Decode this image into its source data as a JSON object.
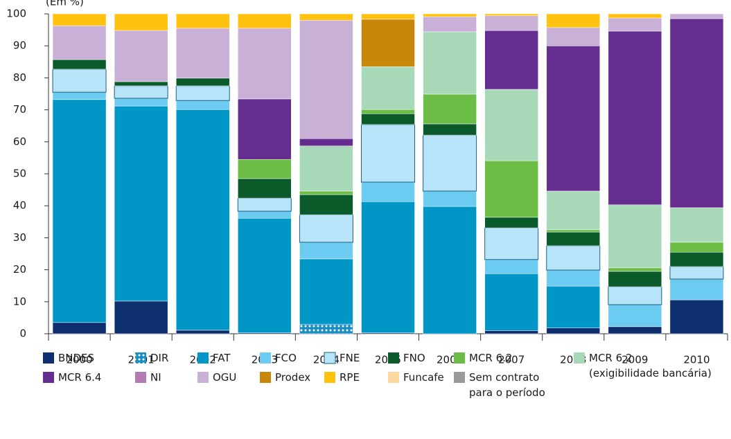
{
  "chart_data": {
    "type": "stacked_bar",
    "title": "(Em %)",
    "categories": [
      "2000",
      "2001",
      "2002",
      "2003",
      "2004",
      "2005",
      "2006",
      "2007",
      "2008",
      "2009",
      "2010"
    ],
    "ylim": [
      0,
      100
    ],
    "yticks": [
      0,
      10,
      20,
      30,
      40,
      50,
      60,
      70,
      80,
      90,
      100
    ],
    "grid": false,
    "series": [
      {
        "name": "BNDES",
        "color": "#0d2f6e",
        "values": [
          3.5,
          10.2,
          1.1,
          0.3,
          0,
          0.3,
          0,
          1,
          1.8,
          2.2,
          10.6
        ]
      },
      {
        "name": "DIR",
        "color": "#1b8fc0",
        "pattern": "dots",
        "values": [
          0,
          0,
          0,
          0,
          3,
          0,
          0,
          0,
          0,
          0,
          0
        ]
      },
      {
        "name": "FAT",
        "color": "#0096c6",
        "values": [
          69.7,
          61,
          69,
          35.8,
          20.4,
          41,
          39.8,
          17.8,
          13.1,
          0,
          0
        ]
      },
      {
        "name": "FCO",
        "color": "#6bcbf0",
        "values": [
          2.3,
          2.4,
          2.8,
          2.2,
          5.2,
          6.1,
          4.8,
          4.4,
          5,
          6.9,
          6.5
        ]
      },
      {
        "name": "FNE",
        "color": "#b7e4f8",
        "outline": "#1d5f80",
        "values": [
          7.2,
          3.9,
          4.6,
          4.1,
          8.6,
          18,
          17.5,
          9.9,
          7.6,
          5.6,
          3.9
        ]
      },
      {
        "name": "FNO",
        "color": "#0b5a2a",
        "values": [
          3,
          1.3,
          2.4,
          6.1,
          6.3,
          3.4,
          3.5,
          3.3,
          4.3,
          4.8,
          4.5
        ]
      },
      {
        "name": "MCR 6.2",
        "color": "#6bbd45",
        "values": [
          0,
          0,
          0,
          6,
          1.1,
          1.3,
          9.3,
          17.7,
          0.7,
          1.1,
          3.1
        ]
      },
      {
        "name": "MCR 6.2\n(exigibilidade bancária)",
        "color": "#a7d9b9",
        "values": [
          0,
          0,
          0,
          0,
          14.1,
          13.4,
          19.5,
          22.3,
          12.1,
          19.7,
          10.8
        ]
      },
      {
        "name": "MCR 6.4",
        "color": "#662d91",
        "values": [
          0,
          0,
          0,
          18.9,
          2.3,
          0,
          0,
          18.4,
          45.4,
          54.3,
          59.1
        ]
      },
      {
        "name": "NI",
        "color": "#b47ab4",
        "values": [
          0,
          0,
          0,
          0,
          0,
          0,
          0,
          0,
          0,
          0,
          0
        ]
      },
      {
        "name": "OGU",
        "color": "#c8b0d6",
        "values": [
          10.6,
          16,
          15.6,
          22.1,
          37,
          0,
          4.7,
          4.6,
          5.7,
          4.1,
          1.5
        ]
      },
      {
        "name": "Prodex",
        "color": "#c8860a",
        "values": [
          0,
          0,
          0,
          0,
          0,
          14.8,
          0,
          0,
          0,
          0,
          0
        ]
      },
      {
        "name": "RPE",
        "color": "#ffc20e",
        "values": [
          3.7,
          5.2,
          4.5,
          4.5,
          2,
          1.7,
          0.9,
          0.6,
          4.3,
          1.3,
          0
        ]
      },
      {
        "name": "Funcafe",
        "color": "#fdd9a0",
        "values": [
          0,
          0,
          0,
          0,
          0,
          0,
          0,
          0,
          0,
          0,
          0
        ]
      },
      {
        "name": "Sem contrato\npara o período",
        "color": "#999999",
        "values": [
          0,
          0,
          0,
          0,
          0,
          0,
          0,
          0,
          0,
          0,
          0
        ]
      }
    ]
  }
}
